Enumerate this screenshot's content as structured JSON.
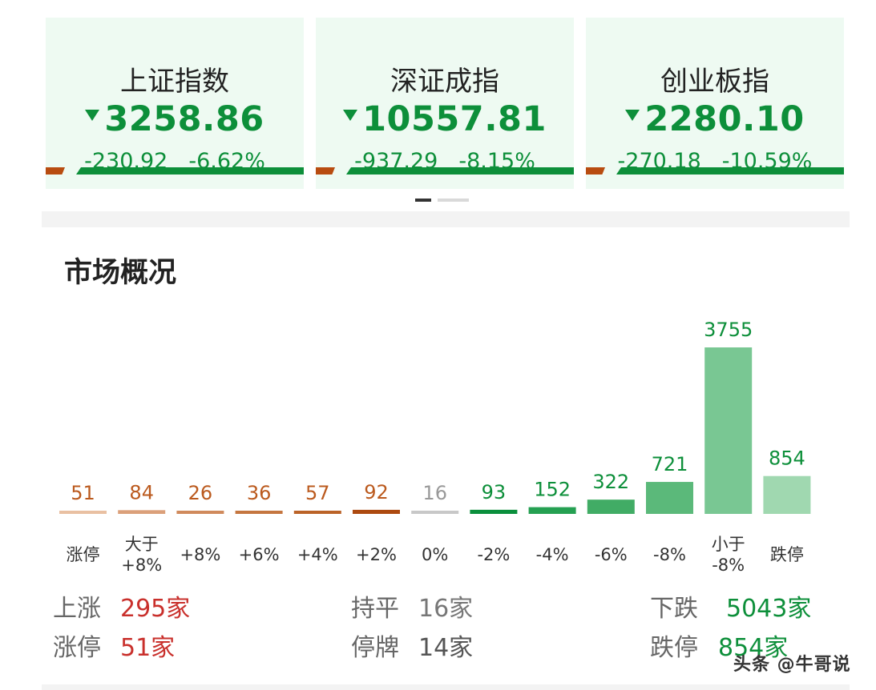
{
  "indices": [
    {
      "name": "上证指数",
      "price": "3258.86",
      "change": "-230.92",
      "pct": "-6.62%"
    },
    {
      "name": "深证成指",
      "price": "10557.81",
      "change": "-937.29",
      "pct": "-8.15%"
    },
    {
      "name": "创业板指",
      "price": "2280.10",
      "change": "-270.18",
      "pct": "-10.59%"
    }
  ],
  "overview": {
    "title": "市场概况",
    "stats": {
      "up_label": "上涨",
      "up_value": "295家",
      "flat_label": "持平",
      "flat_value": "16家",
      "down_label": "下跌",
      "down_value": "5043家",
      "limit_up_label": "涨停",
      "limit_up_value": "51家",
      "suspended_label": "停牌",
      "suspended_value": "14家",
      "limit_down_label": "跌停",
      "limit_down_value": "854家"
    }
  },
  "watermark": "头条 @牛哥说",
  "colors": {
    "up": "#c9302c",
    "down": "#0d8f3a",
    "flat": "#999999"
  },
  "chart_data": {
    "type": "bar",
    "categories": [
      "涨停",
      "大于\n+8%",
      "+8%",
      "+6%",
      "+4%",
      "+2%",
      "0%",
      "-2%",
      "-4%",
      "-6%",
      "-8%",
      "小于\n-8%",
      "跌停"
    ],
    "values": [
      51,
      84,
      26,
      36,
      57,
      92,
      16,
      93,
      152,
      322,
      721,
      3755,
      854
    ],
    "bar_colors": [
      "#e9c0a2",
      "#dba07a",
      "#d08a5c",
      "#c57640",
      "#bb6328",
      "#ad4a10",
      "#c8c8c8",
      "#0a8f3c",
      "#25a052",
      "#41ac65",
      "#5bb97a",
      "#79c793",
      "#a0d8b0"
    ],
    "label_colors": [
      "#bb5a1e",
      "#bb5a1e",
      "#bb5a1e",
      "#bb5a1e",
      "#bb5a1e",
      "#bb5a1e",
      "#999999",
      "#0d8f3a",
      "#0d8f3a",
      "#0d8f3a",
      "#0d8f3a",
      "#0d8f3a",
      "#0d8f3a"
    ]
  }
}
